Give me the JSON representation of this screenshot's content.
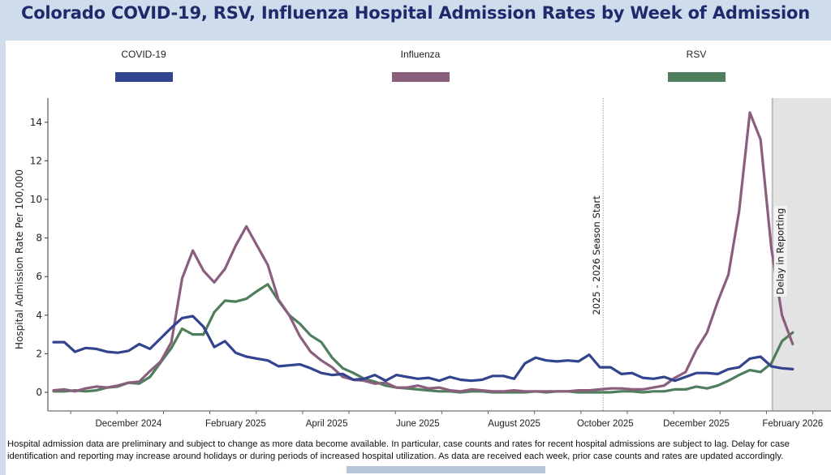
{
  "title": "Colorado COVID-19, RSV, Influenza Hospital Admission Rates by Week of Admission",
  "legend": [
    {
      "label": "COVID-19",
      "color": "#33448e"
    },
    {
      "label": "Influenza",
      "color": "#8a5f7d"
    },
    {
      "label": "RSV",
      "color": "#4e7e5c"
    }
  ],
  "annotations": {
    "season_start": "2025 - 2026 Season Start",
    "delay": "Delay in Reporting"
  },
  "footnote": "Hospital admission data are preliminary and subject to change as more data become available. In particular, case counts and rates for recent hospital admissions are subject to lag. Delay for case identification and reporting may increase around holidays or during periods of increased hospital utilization. As data are received each week, prior case counts and rates are updated accordingly.",
  "chart_data": {
    "type": "line",
    "title": "Colorado COVID-19, RSV, Influenza Hospital Admission Rates by Week of Admission",
    "xlabel": "",
    "ylabel": "Hospital Admission Rate Per 100,000",
    "ylim": [
      -0.8,
      15
    ],
    "yticks": [
      0,
      2,
      4,
      6,
      8,
      10,
      12,
      14
    ],
    "x_unit": "week index (weekly, 70 weeks)",
    "x_tick_labels": [
      {
        "label": "December 2024",
        "week": 7
      },
      {
        "label": "February 2025",
        "week": 17
      },
      {
        "label": "April 2025",
        "week": 25.5
      },
      {
        "label": "June 2025",
        "week": 34
      },
      {
        "label": "August 2025",
        "week": 43
      },
      {
        "label": "October 2025",
        "week": 51.5
      },
      {
        "label": "December 2025",
        "week": 60
      },
      {
        "label": "February 2026",
        "week": 69
      }
    ],
    "season_start_week": 51.3,
    "delay_start_week": 67.1,
    "grid": false,
    "legend_position": "top",
    "series": [
      {
        "name": "COVID-19",
        "values": [
          2.6,
          2.6,
          2.1,
          2.3,
          2.25,
          2.1,
          2.05,
          2.15,
          2.5,
          2.25,
          2.8,
          3.35,
          3.85,
          3.95,
          3.4,
          2.35,
          2.65,
          2.05,
          1.85,
          1.75,
          1.65,
          1.35,
          1.4,
          1.45,
          1.25,
          1.0,
          0.9,
          0.95,
          0.65,
          0.7,
          0.9,
          0.6,
          0.9,
          0.8,
          0.7,
          0.75,
          0.6,
          0.8,
          0.65,
          0.6,
          0.65,
          0.85,
          0.85,
          0.7,
          1.5,
          1.8,
          1.65,
          1.6,
          1.65,
          1.6,
          1.95,
          1.3,
          1.3,
          0.95,
          1.0,
          0.75,
          0.7,
          0.8,
          0.6,
          0.8,
          1.0,
          1.0,
          0.95,
          1.2,
          1.3,
          1.75,
          1.85,
          1.35,
          1.25,
          1.2
        ]
      },
      {
        "name": "Influenza",
        "values": [
          0.1,
          0.15,
          0.05,
          0.2,
          0.3,
          0.25,
          0.35,
          0.5,
          0.55,
          1.1,
          1.6,
          2.6,
          5.9,
          7.35,
          6.3,
          5.7,
          6.4,
          7.6,
          8.6,
          7.6,
          6.6,
          4.8,
          4.0,
          2.9,
          2.1,
          1.65,
          1.3,
          0.8,
          0.65,
          0.6,
          0.45,
          0.5,
          0.25,
          0.25,
          0.35,
          0.2,
          0.25,
          0.1,
          0.05,
          0.15,
          0.1,
          0.05,
          0.05,
          0.1,
          0.05,
          0.05,
          0.05,
          0.05,
          0.05,
          0.1,
          0.1,
          0.15,
          0.2,
          0.2,
          0.15,
          0.15,
          0.25,
          0.35,
          0.75,
          1.05,
          2.2,
          3.1,
          4.7,
          6.1,
          9.4,
          14.5,
          13.1,
          7.5,
          4.0,
          2.5
        ]
      },
      {
        "name": "RSV",
        "values": [
          0.05,
          0.05,
          0.1,
          0.05,
          0.1,
          0.25,
          0.3,
          0.5,
          0.45,
          0.8,
          1.55,
          2.3,
          3.3,
          3.0,
          3.0,
          4.15,
          4.75,
          4.7,
          4.85,
          5.25,
          5.6,
          4.75,
          4.0,
          3.55,
          2.95,
          2.6,
          1.8,
          1.25,
          1.0,
          0.7,
          0.55,
          0.35,
          0.25,
          0.2,
          0.15,
          0.1,
          0.05,
          0.05,
          0.0,
          0.05,
          0.05,
          0.0,
          0.0,
          0.0,
          0.0,
          0.05,
          0.0,
          0.05,
          0.05,
          0.0,
          0.0,
          0.0,
          0.0,
          0.05,
          0.05,
          0.0,
          0.05,
          0.05,
          0.15,
          0.15,
          0.3,
          0.2,
          0.35,
          0.6,
          0.9,
          1.15,
          1.05,
          1.5,
          2.65,
          3.1
        ]
      }
    ]
  }
}
